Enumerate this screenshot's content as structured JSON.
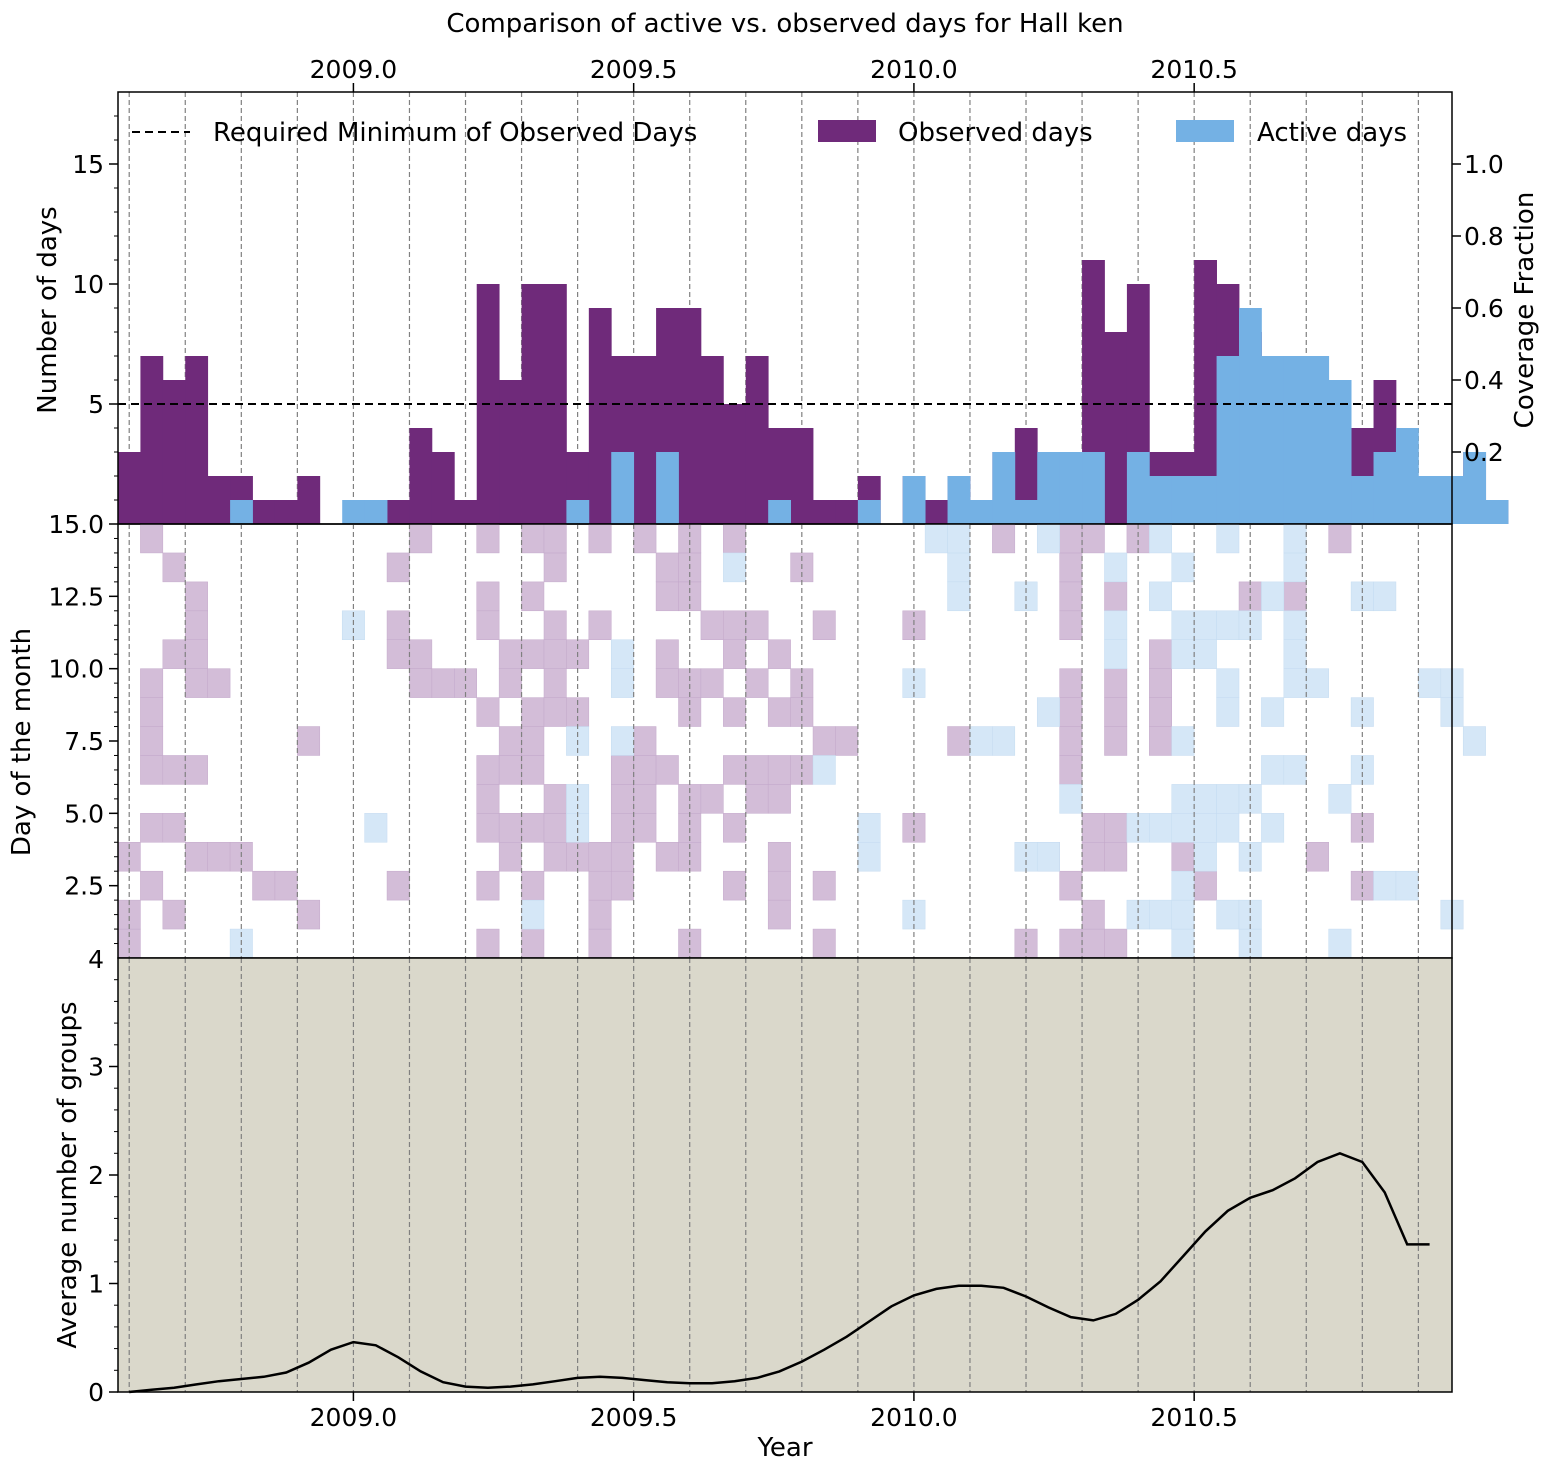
{
  "chart_data": {
    "type": "bar",
    "title": "Comparison of active vs. observed days for Hall ken",
    "colors": {
      "observed": "#6f2a7a",
      "active": "#74b1e4",
      "observed_light": "#d3bdd8",
      "active_light": "#d5e7f7",
      "bottom_background": "#dad8cb",
      "threshold_line": "#000000"
    },
    "shared_x": {
      "xlabel": "Year",
      "xlim": [
        2008.58,
        2010.96
      ],
      "ticks": [
        2009.0,
        2009.5,
        2010.0,
        2010.5
      ],
      "tick_labels": [
        "2009.0",
        "2009.5",
        "2010.0",
        "2010.5"
      ],
      "month_lines": [
        2008.6,
        2008.7,
        2008.8,
        2008.9,
        2009.0,
        2009.1,
        2009.2,
        2009.3,
        2009.4,
        2009.5,
        2009.6,
        2009.7,
        2009.8,
        2009.9,
        2010.0,
        2010.1,
        2010.2,
        2010.3,
        2010.4,
        2010.5,
        2010.6,
        2010.7,
        2010.8,
        2010.9
      ]
    },
    "top_panel": {
      "ylabel": "Number of days",
      "ylabel_right": "Coverage Fraction",
      "ylim": [
        0,
        18
      ],
      "yticks": [
        5,
        10,
        15
      ],
      "ytick_labels": [
        "5",
        "10",
        "15"
      ],
      "right_ylim": [
        0,
        1.2
      ],
      "right_yticks": [
        0.2,
        0.4,
        0.6,
        0.8,
        1.0
      ],
      "right_ytick_labels": [
        "0.2",
        "0.4",
        "0.6",
        "0.8",
        "1.0"
      ],
      "threshold": 5,
      "legend": {
        "placement": "top",
        "entries": [
          {
            "label": "Required Minimum of Observed Days",
            "kind": "dashed-line"
          },
          {
            "label": "Observed days",
            "kind": "observed"
          },
          {
            "label": "Active days",
            "kind": "active"
          }
        ]
      },
      "x_start": 2008.58,
      "bin_width": 0.04,
      "observed": [
        3,
        7,
        6,
        7,
        2,
        2,
        1,
        1,
        2,
        0,
        0,
        1,
        1,
        4,
        3,
        1,
        10,
        6,
        10,
        10,
        3,
        9,
        7,
        7,
        9,
        9,
        7,
        5,
        7,
        4,
        4,
        1,
        1,
        2,
        0,
        2,
        1,
        2,
        1,
        3,
        4,
        3,
        0,
        11,
        8,
        10,
        3,
        3,
        11,
        10,
        8,
        7,
        7,
        6,
        3,
        4,
        6,
        2,
        2,
        2,
        3,
        1
      ],
      "active": [
        0,
        0,
        0,
        0,
        0,
        1,
        0,
        0,
        0,
        0,
        1,
        1,
        0,
        0,
        0,
        0,
        0,
        0,
        0,
        0,
        1,
        0,
        3,
        0,
        3,
        0,
        0,
        0,
        0,
        1,
        0,
        0,
        0,
        1,
        0,
        2,
        0,
        2,
        1,
        3,
        1,
        3,
        3,
        3,
        0,
        3,
        2,
        2,
        2,
        7,
        9,
        7,
        7,
        7,
        6,
        2,
        3,
        4,
        2,
        2,
        3,
        1
      ]
    },
    "middle_panel": {
      "ylabel": "Day of the month",
      "ylim": [
        0,
        15
      ],
      "yticks": [
        2.5,
        5.0,
        7.5,
        10.0,
        12.5,
        15.0
      ],
      "ytick_labels": [
        "2.5",
        "5.0",
        "7.5",
        "10.0",
        "12.5",
        "15.0"
      ],
      "bottom_tick_label": "4",
      "x_start": 2008.58,
      "cell_width": 0.04,
      "observed_cells": [
        [
          0,
          0
        ],
        [
          0,
          1
        ],
        [
          0,
          3
        ],
        [
          1,
          2
        ],
        [
          1,
          4
        ],
        [
          1,
          6
        ],
        [
          1,
          7
        ],
        [
          1,
          8
        ],
        [
          1,
          9
        ],
        [
          1,
          14
        ],
        [
          2,
          1
        ],
        [
          2,
          4
        ],
        [
          2,
          6
        ],
        [
          2,
          10
        ],
        [
          2,
          13
        ],
        [
          3,
          3
        ],
        [
          3,
          6
        ],
        [
          3,
          9
        ],
        [
          3,
          10
        ],
        [
          3,
          11
        ],
        [
          3,
          12
        ],
        [
          4,
          3
        ],
        [
          4,
          9
        ],
        [
          5,
          3
        ],
        [
          6,
          2
        ],
        [
          7,
          2
        ],
        [
          8,
          1
        ],
        [
          8,
          7
        ],
        [
          12,
          2
        ],
        [
          12,
          13
        ],
        [
          12,
          11
        ],
        [
          12,
          10
        ],
        [
          13,
          14
        ],
        [
          13,
          10
        ],
        [
          13,
          9
        ],
        [
          14,
          9
        ],
        [
          15,
          9
        ],
        [
          16,
          0
        ],
        [
          16,
          2
        ],
        [
          16,
          4
        ],
        [
          16,
          5
        ],
        [
          16,
          6
        ],
        [
          16,
          8
        ],
        [
          16,
          11
        ],
        [
          16,
          12
        ],
        [
          16,
          14
        ],
        [
          17,
          3
        ],
        [
          17,
          4
        ],
        [
          17,
          6
        ],
        [
          17,
          7
        ],
        [
          17,
          9
        ],
        [
          17,
          10
        ],
        [
          18,
          0
        ],
        [
          18,
          2
        ],
        [
          18,
          4
        ],
        [
          18,
          6
        ],
        [
          18,
          7
        ],
        [
          18,
          8
        ],
        [
          18,
          10
        ],
        [
          18,
          12
        ],
        [
          18,
          14
        ],
        [
          19,
          3
        ],
        [
          19,
          4
        ],
        [
          19,
          5
        ],
        [
          19,
          8
        ],
        [
          19,
          9
        ],
        [
          19,
          10
        ],
        [
          19,
          11
        ],
        [
          19,
          13
        ],
        [
          19,
          14
        ],
        [
          20,
          3
        ],
        [
          20,
          8
        ],
        [
          20,
          10
        ],
        [
          21,
          0
        ],
        [
          21,
          1
        ],
        [
          21,
          2
        ],
        [
          21,
          3
        ],
        [
          21,
          11
        ],
        [
          21,
          14
        ],
        [
          22,
          2
        ],
        [
          22,
          3
        ],
        [
          22,
          4
        ],
        [
          22,
          5
        ],
        [
          22,
          6
        ],
        [
          23,
          4
        ],
        [
          23,
          5
        ],
        [
          23,
          6
        ],
        [
          23,
          7
        ],
        [
          23,
          14
        ],
        [
          24,
          3
        ],
        [
          24,
          6
        ],
        [
          24,
          9
        ],
        [
          24,
          10
        ],
        [
          24,
          12
        ],
        [
          24,
          13
        ],
        [
          25,
          0
        ],
        [
          25,
          3
        ],
        [
          25,
          4
        ],
        [
          25,
          5
        ],
        [
          25,
          8
        ],
        [
          25,
          9
        ],
        [
          25,
          12
        ],
        [
          25,
          13
        ],
        [
          25,
          14
        ],
        [
          26,
          5
        ],
        [
          26,
          9
        ],
        [
          26,
          11
        ],
        [
          27,
          2
        ],
        [
          27,
          4
        ],
        [
          27,
          6
        ],
        [
          27,
          8
        ],
        [
          27,
          10
        ],
        [
          27,
          11
        ],
        [
          27,
          14
        ],
        [
          28,
          5
        ],
        [
          28,
          6
        ],
        [
          28,
          9
        ],
        [
          28,
          11
        ],
        [
          29,
          1
        ],
        [
          29,
          2
        ],
        [
          29,
          3
        ],
        [
          29,
          5
        ],
        [
          29,
          6
        ],
        [
          29,
          8
        ],
        [
          29,
          10
        ],
        [
          30,
          6
        ],
        [
          30,
          8
        ],
        [
          30,
          9
        ],
        [
          30,
          13
        ],
        [
          31,
          0
        ],
        [
          31,
          2
        ],
        [
          31,
          7
        ],
        [
          31,
          11
        ],
        [
          32,
          7
        ],
        [
          35,
          4
        ],
        [
          35,
          11
        ],
        [
          37,
          7
        ],
        [
          39,
          14
        ],
        [
          40,
          0
        ],
        [
          41,
          3
        ],
        [
          42,
          0
        ],
        [
          42,
          2
        ],
        [
          42,
          6
        ],
        [
          42,
          7
        ],
        [
          42,
          8
        ],
        [
          42,
          9
        ],
        [
          42,
          11
        ],
        [
          42,
          12
        ],
        [
          42,
          13
        ],
        [
          42,
          14
        ],
        [
          43,
          0
        ],
        [
          43,
          1
        ],
        [
          43,
          3
        ],
        [
          43,
          4
        ],
        [
          43,
          14
        ],
        [
          44,
          0
        ],
        [
          44,
          3
        ],
        [
          44,
          4
        ],
        [
          44,
          7
        ],
        [
          44,
          8
        ],
        [
          44,
          9
        ],
        [
          44,
          12
        ],
        [
          45,
          14
        ],
        [
          46,
          7
        ],
        [
          46,
          8
        ],
        [
          46,
          9
        ],
        [
          46,
          10
        ],
        [
          47,
          3
        ],
        [
          48,
          2
        ],
        [
          50,
          12
        ],
        [
          52,
          12
        ],
        [
          53,
          3
        ],
        [
          54,
          14
        ],
        [
          55,
          2
        ],
        [
          55,
          4
        ]
      ],
      "active_cells": [
        [
          5,
          0
        ],
        [
          10,
          11
        ],
        [
          11,
          4
        ],
        [
          18,
          1
        ],
        [
          20,
          7
        ],
        [
          20,
          5
        ],
        [
          20,
          4
        ],
        [
          22,
          10
        ],
        [
          22,
          9
        ],
        [
          22,
          7
        ],
        [
          27,
          13
        ],
        [
          31,
          6
        ],
        [
          33,
          3
        ],
        [
          33,
          4
        ],
        [
          35,
          1
        ],
        [
          35,
          9
        ],
        [
          36,
          14
        ],
        [
          37,
          13
        ],
        [
          37,
          12
        ],
        [
          37,
          14
        ],
        [
          38,
          7
        ],
        [
          39,
          7
        ],
        [
          40,
          12
        ],
        [
          40,
          3
        ],
        [
          41,
          3
        ],
        [
          41,
          8
        ],
        [
          41,
          14
        ],
        [
          42,
          5
        ],
        [
          44,
          10
        ],
        [
          44,
          11
        ],
        [
          44,
          13
        ],
        [
          45,
          1
        ],
        [
          45,
          4
        ],
        [
          46,
          1
        ],
        [
          46,
          4
        ],
        [
          46,
          12
        ],
        [
          46,
          14
        ],
        [
          47,
          0
        ],
        [
          47,
          1
        ],
        [
          47,
          2
        ],
        [
          47,
          4
        ],
        [
          47,
          5
        ],
        [
          47,
          7
        ],
        [
          47,
          10
        ],
        [
          47,
          11
        ],
        [
          47,
          13
        ],
        [
          48,
          3
        ],
        [
          48,
          4
        ],
        [
          48,
          5
        ],
        [
          48,
          10
        ],
        [
          48,
          11
        ],
        [
          49,
          1
        ],
        [
          49,
          4
        ],
        [
          49,
          5
        ],
        [
          49,
          8
        ],
        [
          49,
          9
        ],
        [
          49,
          11
        ],
        [
          49,
          14
        ],
        [
          50,
          0
        ],
        [
          50,
          1
        ],
        [
          50,
          3
        ],
        [
          50,
          5
        ],
        [
          50,
          11
        ],
        [
          51,
          4
        ],
        [
          51,
          6
        ],
        [
          51,
          8
        ],
        [
          51,
          12
        ],
        [
          52,
          6
        ],
        [
          52,
          9
        ],
        [
          52,
          10
        ],
        [
          52,
          11
        ],
        [
          52,
          13
        ],
        [
          52,
          14
        ],
        [
          53,
          9
        ],
        [
          54,
          0
        ],
        [
          54,
          5
        ],
        [
          55,
          6
        ],
        [
          55,
          8
        ],
        [
          55,
          12
        ],
        [
          56,
          2
        ],
        [
          56,
          12
        ],
        [
          57,
          2
        ],
        [
          58,
          9
        ],
        [
          59,
          1
        ],
        [
          59,
          8
        ],
        [
          59,
          9
        ],
        [
          60,
          7
        ]
      ]
    },
    "bottom_panel": {
      "ylabel": "Average number of groups",
      "ylim": [
        0,
        4
      ],
      "yticks": [
        0,
        1,
        2,
        3
      ],
      "ytick_labels": [
        "0",
        "1",
        "2",
        "3"
      ],
      "x": [
        2008.6,
        2008.64,
        2008.68,
        2008.72,
        2008.76,
        2008.8,
        2008.84,
        2008.88,
        2008.92,
        2008.96,
        2009.0,
        2009.04,
        2009.08,
        2009.12,
        2009.16,
        2009.2,
        2009.24,
        2009.28,
        2009.32,
        2009.36,
        2009.4,
        2009.44,
        2009.48,
        2009.52,
        2009.56,
        2009.6,
        2009.64,
        2009.68,
        2009.72,
        2009.76,
        2009.8,
        2009.84,
        2009.88,
        2009.92,
        2009.96,
        2010.0,
        2010.04,
        2010.08,
        2010.12,
        2010.16,
        2010.2,
        2010.24,
        2010.28,
        2010.32,
        2010.36,
        2010.4,
        2010.44,
        2010.48,
        2010.52,
        2010.56,
        2010.6,
        2010.64,
        2010.68,
        2010.72,
        2010.76,
        2010.8,
        2010.84,
        2010.88,
        2010.92
      ],
      "y": [
        0.0,
        0.02,
        0.04,
        0.07,
        0.1,
        0.12,
        0.14,
        0.18,
        0.27,
        0.39,
        0.46,
        0.43,
        0.32,
        0.19,
        0.09,
        0.05,
        0.04,
        0.05,
        0.07,
        0.1,
        0.13,
        0.14,
        0.13,
        0.11,
        0.09,
        0.08,
        0.08,
        0.1,
        0.13,
        0.19,
        0.28,
        0.39,
        0.51,
        0.65,
        0.79,
        0.89,
        0.95,
        0.98,
        0.98,
        0.96,
        0.88,
        0.78,
        0.69,
        0.66,
        0.72,
        0.85,
        1.02,
        1.25,
        1.48,
        1.67,
        1.79,
        1.86,
        1.97,
        2.12,
        2.2,
        2.12,
        1.84,
        1.36,
        1.36
      ]
    }
  }
}
